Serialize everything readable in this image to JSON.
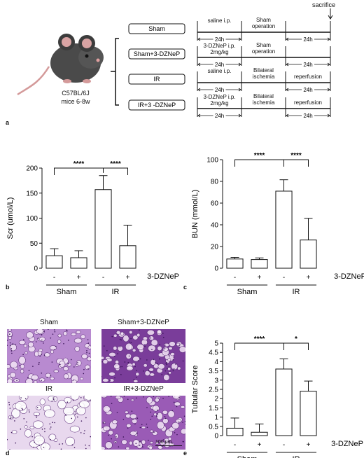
{
  "figure": {
    "panel_letters": [
      "a",
      "b",
      "c",
      "d",
      "e"
    ],
    "scheme": {
      "mouse_label_line1": "C57BL/6J",
      "mouse_label_line2": "mice 6-8w",
      "sacrifice_label": "sacrifice",
      "duration_label": "24h",
      "groups": [
        {
          "name": "Sham",
          "pre": "saline i.p.",
          "mid": "Sham\noperation",
          "post": ""
        },
        {
          "name": "Sham+3-DZNeP",
          "pre": "3-DZNeP i.p.\n2mg/kg",
          "mid": "Sham\noperation",
          "post": ""
        },
        {
          "name": "IR",
          "pre": "saline i.p.",
          "mid": "Bilateral\nischemia",
          "post": "reperfusion"
        },
        {
          "name": "IR+3 -DZNeP",
          "pre": "3-DZNeP i.p.\n2mg/kg",
          "mid": "Bilateral\nischemia",
          "post": "reperfusion"
        }
      ]
    },
    "micrographs": {
      "labels": [
        "Sham",
        "Sham+3-DZNeP",
        "IR",
        "IR+3-DZNeP"
      ],
      "scale_bar": "100 μm",
      "stain_colors": [
        "#b88ad0",
        "#7a3d9a",
        "#e8d8ee",
        "#9a5bb6"
      ]
    }
  },
  "chart_data": [
    {
      "type": "bar",
      "panel": "b",
      "ylabel": "Scr  (umol/L)",
      "ylim": [
        0,
        200
      ],
      "yticks": [
        0,
        50,
        100,
        150,
        200
      ],
      "tick_labels": [
        "-",
        "+",
        "-",
        "+"
      ],
      "group_labels": [
        "Sham",
        "IR"
      ],
      "treatment_label": "3-DZNeP",
      "values": [
        25,
        21,
        157,
        45
      ],
      "errors": [
        14,
        14,
        28,
        41
      ],
      "significance": [
        {
          "from": 0,
          "to": 2,
          "label": "****"
        },
        {
          "from": 2,
          "to": 3,
          "label": "****"
        }
      ]
    },
    {
      "type": "bar",
      "panel": "c",
      "ylabel": "BUN  (mmol/L)",
      "ylim": [
        0,
        100
      ],
      "yticks": [
        0,
        20,
        40,
        60,
        80,
        100
      ],
      "tick_labels": [
        "-",
        "+",
        "-",
        "+"
      ],
      "group_labels": [
        "Sham",
        "IR"
      ],
      "treatment_label": "3-DZNeP",
      "values": [
        8.5,
        8,
        71,
        26
      ],
      "errors": [
        1.5,
        1.5,
        10.5,
        20
      ],
      "significance": [
        {
          "from": 0,
          "to": 2,
          "label": "****"
        },
        {
          "from": 2,
          "to": 3,
          "label": "****"
        }
      ]
    },
    {
      "type": "bar",
      "panel": "e",
      "ylabel": "Tubular Score",
      "ylim": [
        0,
        5
      ],
      "yticks": [
        0,
        0.5,
        1,
        1.5,
        2,
        2.5,
        3,
        3.5,
        4,
        4.5,
        5
      ],
      "tick_labels": [
        "-",
        "+",
        "-",
        "+"
      ],
      "group_labels": [
        "Sham",
        "IR"
      ],
      "treatment_label": "3-DZNeP",
      "values": [
        0.4,
        0.18,
        3.6,
        2.4
      ],
      "errors": [
        0.55,
        0.45,
        0.55,
        0.55
      ],
      "significance": [
        {
          "from": 0,
          "to": 2,
          "label": "****"
        },
        {
          "from": 2,
          "to": 3,
          "label": "*"
        }
      ]
    }
  ]
}
